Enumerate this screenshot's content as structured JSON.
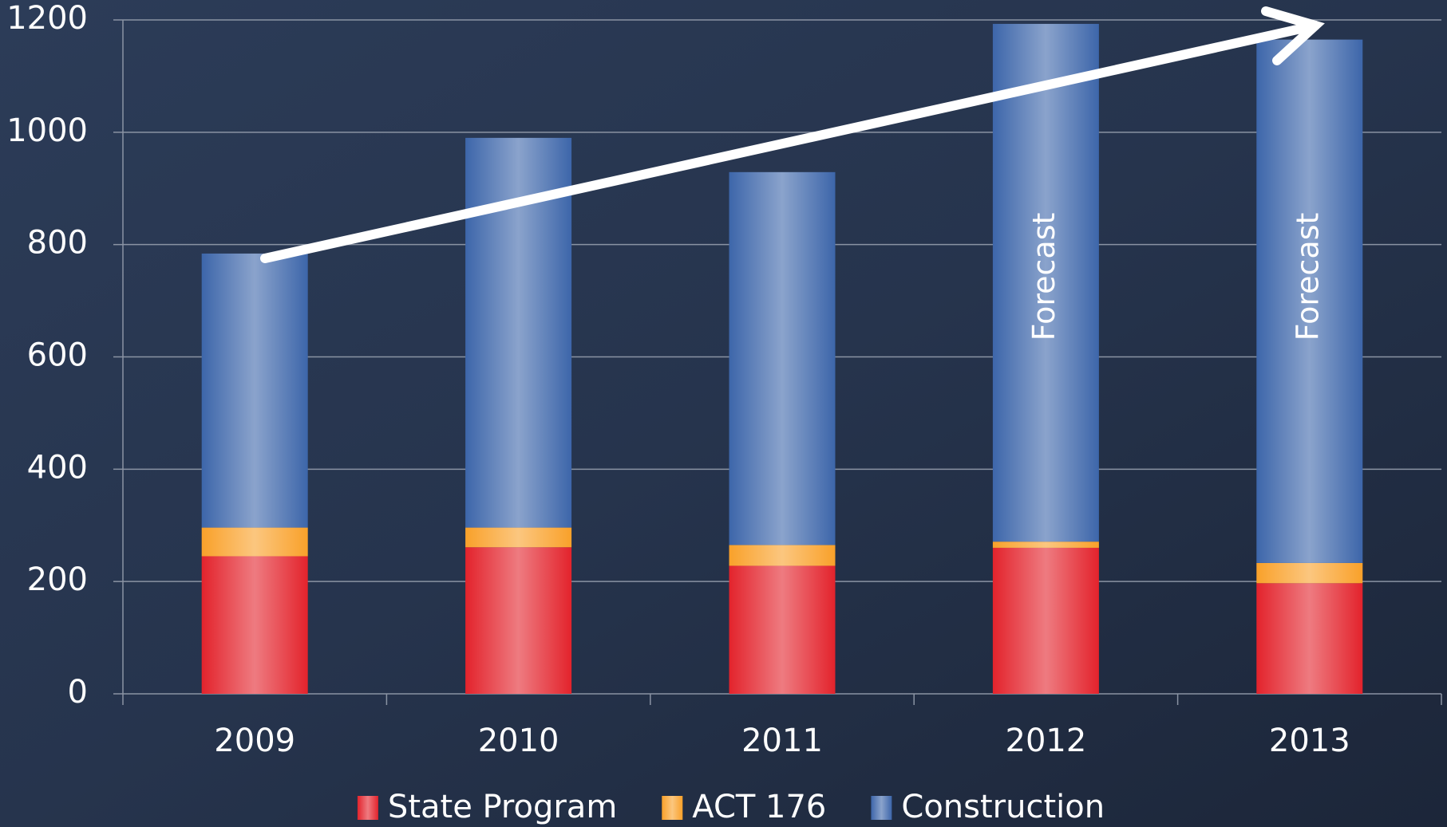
{
  "chart_data": {
    "type": "stacked_bar",
    "categories": [
      "2009",
      "2010",
      "2011",
      "2012",
      "2013"
    ],
    "series": [
      {
        "name": "State Program",
        "color": "#e3232c",
        "values": [
          245,
          261,
          228,
          260,
          197
        ]
      },
      {
        "name": "ACT 176",
        "color": "#f9a12a",
        "values": [
          51,
          35,
          37,
          11,
          36
        ]
      },
      {
        "name": "Construction",
        "color": "#3d66aa",
        "values": [
          488,
          694,
          664,
          922,
          932
        ]
      }
    ],
    "forecast_labels": [
      null,
      null,
      null,
      "Forecast",
      "Forecast"
    ],
    "ylim": [
      0,
      1200
    ],
    "yticks": [
      0,
      200,
      400,
      600,
      800,
      1000,
      1200
    ],
    "grid": true,
    "legend": "bottom"
  }
}
